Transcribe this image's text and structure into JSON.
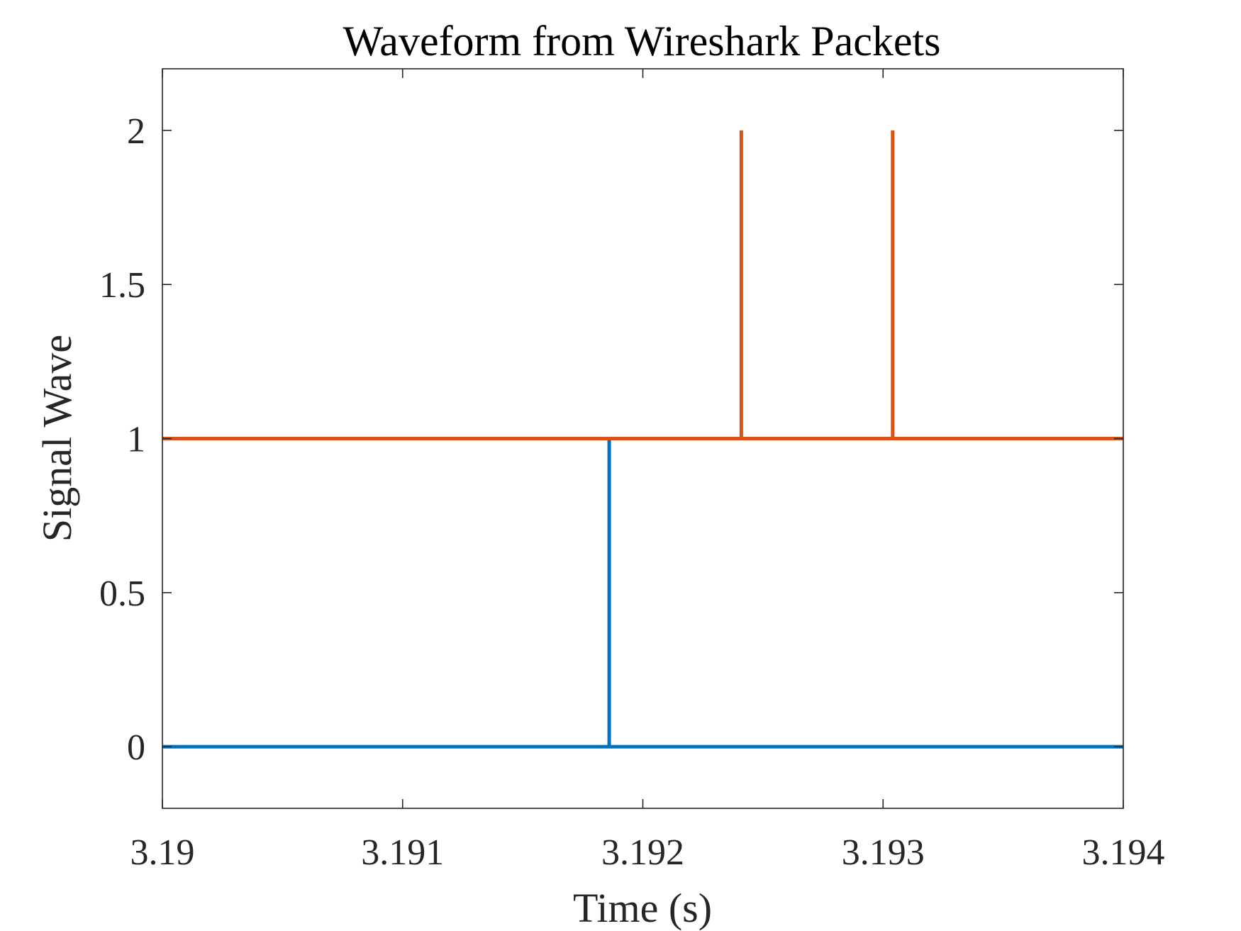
{
  "chart_data": {
    "type": "line",
    "title": "Waveform from Wireshark Packets",
    "xlabel": "Time (s)",
    "ylabel": "Signal Wave",
    "xlim": [
      3.19,
      3.194
    ],
    "ylim": [
      -0.2,
      2.2
    ],
    "xticks": [
      3.19,
      3.191,
      3.192,
      3.193,
      3.194
    ],
    "xtick_labels": [
      "3.19",
      "3.191",
      "3.192",
      "3.193",
      "3.194"
    ],
    "yticks": [
      0,
      0.5,
      1,
      1.5,
      2
    ],
    "ytick_labels": [
      "0",
      "0.5",
      "1",
      "1.5",
      "2"
    ],
    "grid": false,
    "series": [
      {
        "color": "#0072BD",
        "x": [
          3.19,
          3.19186,
          3.19186,
          3.19186,
          3.194
        ],
        "y": [
          0,
          0,
          1,
          0,
          0
        ]
      },
      {
        "color": "#D95319",
        "x": [
          3.19,
          3.19241,
          3.19241,
          3.19241,
          3.19304,
          3.19304,
          3.19304,
          3.194
        ],
        "y": [
          1,
          1,
          2,
          1,
          1,
          2,
          1,
          1
        ]
      }
    ]
  }
}
